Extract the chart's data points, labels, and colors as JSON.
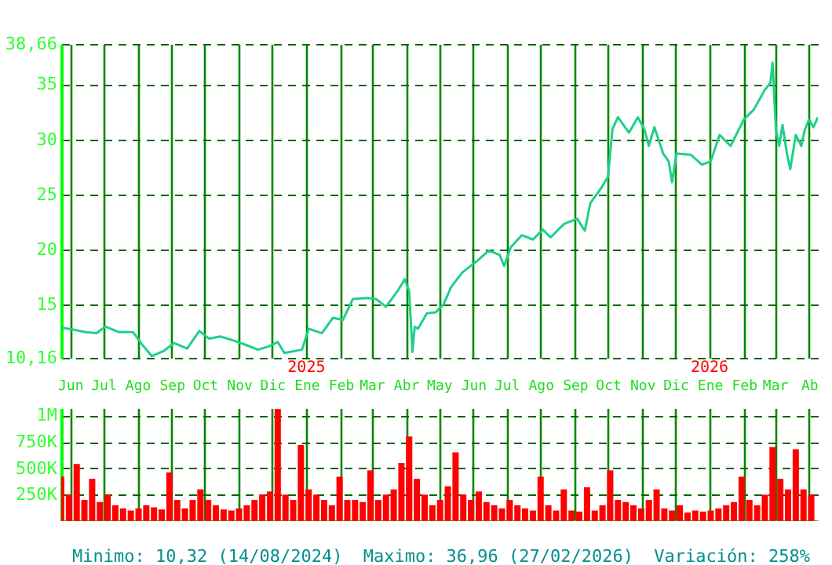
{
  "chart_data": [
    {
      "type": "line",
      "color": "#1fd08a",
      "grid": true,
      "line_style": "solid",
      "xlim": [
        "2024-05-24",
        "2026-04-09"
      ],
      "xticks": [
        {
          "value": "2024-06-01",
          "label": "Jun"
        },
        {
          "value": "2024-07-01",
          "label": "Jul"
        },
        {
          "value": "2024-08-01",
          "label": "Ago"
        },
        {
          "value": "2024-09-01",
          "label": "Sep"
        },
        {
          "value": "2024-10-01",
          "label": "Oct"
        },
        {
          "value": "2024-11-01",
          "label": "Nov"
        },
        {
          "value": "2024-12-01",
          "label": "Dic"
        },
        {
          "value": "2025-01-01",
          "label": "Ene"
        },
        {
          "value": "2025-02-01",
          "label": "Feb"
        },
        {
          "value": "2025-03-01",
          "label": "Mar"
        },
        {
          "value": "2025-04-01",
          "label": "Abr"
        },
        {
          "value": "2025-05-01",
          "label": "May"
        },
        {
          "value": "2025-06-01",
          "label": "Jun"
        },
        {
          "value": "2025-07-01",
          "label": "Jul"
        },
        {
          "value": "2025-08-01",
          "label": "Ago"
        },
        {
          "value": "2025-09-01",
          "label": "Sep"
        },
        {
          "value": "2025-10-01",
          "label": "Oct"
        },
        {
          "value": "2025-11-01",
          "label": "Nov"
        },
        {
          "value": "2025-12-01",
          "label": "Dic"
        },
        {
          "value": "2026-01-01",
          "label": "Ene"
        },
        {
          "value": "2026-02-01",
          "label": "Feb"
        },
        {
          "value": "2026-03-01",
          "label": "Mar"
        },
        {
          "value": "2026-04-01",
          "label": "Ab"
        }
      ],
      "ylim": [
        10.16,
        38.66
      ],
      "yticks": [
        {
          "value": 10.16,
          "label": "10,16"
        },
        15,
        20,
        25,
        30,
        35,
        {
          "value": 38.66,
          "label": "38,66"
        }
      ],
      "annotations": [
        "2025",
        "2026"
      ],
      "x": [
        "2024-05-24",
        "2024-06-05",
        "2024-06-15",
        "2024-06-25",
        "2024-07-03",
        "2024-07-15",
        "2024-07-28",
        "2024-08-05",
        "2024-08-14",
        "2024-08-25",
        "2024-09-03",
        "2024-09-15",
        "2024-09-26",
        "2024-10-05",
        "2024-10-15",
        "2024-10-28",
        "2024-11-08",
        "2024-11-18",
        "2024-11-28",
        "2024-12-06",
        "2024-12-12",
        "2024-12-28",
        "2025-01-03",
        "2025-01-15",
        "2025-01-25",
        "2025-02-03",
        "2025-02-12",
        "2025-02-25",
        "2025-03-05",
        "2025-03-14",
        "2025-03-25",
        "2025-03-31",
        "2025-04-04",
        "2025-04-07",
        "2025-04-09",
        "2025-04-12",
        "2025-04-20",
        "2025-04-28",
        "2025-05-05",
        "2025-05-12",
        "2025-05-22",
        "2025-06-05",
        "2025-06-15",
        "2025-06-25",
        "2025-06-29",
        "2025-07-05",
        "2025-07-15",
        "2025-07-25",
        "2025-08-03",
        "2025-08-10",
        "2025-08-22",
        "2025-09-03",
        "2025-09-10",
        "2025-09-15",
        "2025-09-25",
        "2025-10-01",
        "2025-10-05",
        "2025-10-10",
        "2025-10-20",
        "2025-10-28",
        "2025-11-03",
        "2025-11-07",
        "2025-11-12",
        "2025-11-20",
        "2025-11-25",
        "2025-11-28",
        "2025-12-02",
        "2025-12-15",
        "2025-12-25",
        "2026-01-02",
        "2026-01-10",
        "2026-01-20",
        "2026-02-01",
        "2026-02-10",
        "2026-02-20",
        "2026-02-25",
        "2026-02-27",
        "2026-03-02",
        "2026-03-05",
        "2026-03-08",
        "2026-03-12",
        "2026-03-15",
        "2026-03-20",
        "2026-03-25",
        "2026-03-28",
        "2026-04-01",
        "2026-04-05",
        "2026-04-09"
      ],
      "values": [
        12.9,
        12.7,
        12.5,
        12.4,
        13.0,
        12.5,
        12.5,
        11.4,
        10.32,
        10.8,
        11.5,
        11.0,
        12.6,
        11.9,
        12.1,
        11.7,
        11.3,
        10.9,
        11.2,
        11.6,
        10.6,
        10.9,
        12.8,
        12.4,
        13.8,
        13.6,
        15.5,
        15.6,
        15.5,
        14.8,
        16.3,
        17.3,
        16.2,
        10.7,
        13.0,
        12.8,
        14.2,
        14.3,
        15.0,
        16.6,
        17.9,
        19.0,
        19.9,
        19.5,
        18.5,
        20.2,
        21.3,
        20.9,
        21.8,
        21.1,
        22.3,
        22.8,
        21.7,
        24.2,
        25.6,
        26.6,
        30.9,
        32.0,
        30.6,
        32.0,
        30.9,
        29.4,
        31.1,
        28.7,
        28.0,
        26.1,
        28.7,
        28.6,
        27.7,
        28.0,
        30.4,
        29.4,
        31.8,
        32.7,
        34.5,
        35.1,
        36.96,
        30.9,
        29.4,
        31.3,
        28.7,
        27.3,
        30.4,
        29.4,
        30.8,
        31.8,
        31.1,
        32.0
      ]
    },
    {
      "type": "bar",
      "color": "#ff0000",
      "grid": true,
      "tick_labels": "y",
      "xlim": [
        "2024-05-24",
        "2026-04-09"
      ],
      "xticks": [
        {
          "value": "2024-06-01",
          "label": null
        },
        {
          "value": "2024-07-01",
          "label": null
        },
        {
          "value": "2024-08-01",
          "label": null
        },
        {
          "value": "2024-09-01",
          "label": null
        },
        {
          "value": "2024-10-01",
          "label": null
        },
        {
          "value": "2024-11-01",
          "label": null
        },
        {
          "value": "2024-12-01",
          "label": null
        },
        {
          "value": "2025-01-01",
          "label": null
        },
        {
          "value": "2025-02-01",
          "label": null
        },
        {
          "value": "2025-03-01",
          "label": null
        },
        {
          "value": "2025-04-01",
          "label": null
        },
        {
          "value": "2025-05-01",
          "label": null
        },
        {
          "value": "2025-06-01",
          "label": null
        },
        {
          "value": "2025-07-01",
          "label": null
        },
        {
          "value": "2025-08-01",
          "label": null
        },
        {
          "value": "2025-09-01",
          "label": null
        },
        {
          "value": "2025-10-01",
          "label": null
        },
        {
          "value": "2025-11-01",
          "label": null
        },
        {
          "value": "2025-12-01",
          "label": null
        },
        {
          "value": "2026-01-01",
          "label": null
        },
        {
          "value": "2026-02-01",
          "label": null
        },
        {
          "value": "2026-03-01",
          "label": null
        },
        {
          "value": "2026-04-01",
          "label": null
        }
      ],
      "ylim": [
        0,
        1070000
      ],
      "yticks": [
        {
          "value": 250000,
          "label": "250K"
        },
        {
          "value": 500000,
          "label": "500K"
        },
        {
          "value": 750000,
          "label": "750K"
        },
        {
          "value": 1000000,
          "label": "1M"
        }
      ],
      "annotations": [
        "Minimo: 10,32 (14/08/2024)",
        "Maximo: 36,96 (27/02/2026)",
        "Variación: 258%"
      ],
      "x": [
        "2024-05-24",
        "2024-05-31",
        "2024-06-07",
        "2024-06-14",
        "2024-06-21",
        "2024-06-28",
        "2024-07-05",
        "2024-07-12",
        "2024-07-19",
        "2024-07-26",
        "2024-08-02",
        "2024-08-09",
        "2024-08-16",
        "2024-08-23",
        "2024-08-30",
        "2024-09-06",
        "2024-09-13",
        "2024-09-20",
        "2024-09-27",
        "2024-10-04",
        "2024-10-11",
        "2024-10-18",
        "2024-10-25",
        "2024-11-01",
        "2024-11-08",
        "2024-11-15",
        "2024-11-22",
        "2024-11-29",
        "2024-12-06",
        "2024-12-13",
        "2024-12-20",
        "2024-12-27",
        "2025-01-03",
        "2025-01-10",
        "2025-01-17",
        "2025-01-24",
        "2025-01-31",
        "2025-02-07",
        "2025-02-14",
        "2025-02-21",
        "2025-02-28",
        "2025-03-07",
        "2025-03-14",
        "2025-03-21",
        "2025-03-28",
        "2025-04-04",
        "2025-04-11",
        "2025-04-18",
        "2025-04-25",
        "2025-05-02",
        "2025-05-09",
        "2025-05-16",
        "2025-05-23",
        "2025-05-30",
        "2025-06-06",
        "2025-06-13",
        "2025-06-20",
        "2025-06-27",
        "2025-07-04",
        "2025-07-11",
        "2025-07-18",
        "2025-07-25",
        "2025-08-01",
        "2025-08-08",
        "2025-08-15",
        "2025-08-22",
        "2025-08-29",
        "2025-09-05",
        "2025-09-12",
        "2025-09-19",
        "2025-09-26",
        "2025-10-03",
        "2025-10-10",
        "2025-10-17",
        "2025-10-24",
        "2025-10-31",
        "2025-11-07",
        "2025-11-14",
        "2025-11-21",
        "2025-11-28",
        "2025-12-05",
        "2025-12-12",
        "2025-12-19",
        "2025-12-26",
        "2026-01-02",
        "2026-01-09",
        "2026-01-16",
        "2026-01-23",
        "2026-01-30",
        "2026-02-06",
        "2026-02-13",
        "2026-02-20",
        "2026-02-27",
        "2026-03-06",
        "2026-03-13",
        "2026-03-20",
        "2026-03-27",
        "2026-04-03"
      ],
      "values": [
        420000,
        250000,
        540000,
        200000,
        400000,
        180000,
        250000,
        150000,
        120000,
        100000,
        120000,
        150000,
        130000,
        110000,
        460000,
        200000,
        120000,
        200000,
        300000,
        200000,
        150000,
        110000,
        100000,
        120000,
        150000,
        200000,
        250000,
        280000,
        1060000,
        250000,
        200000,
        720000,
        300000,
        250000,
        200000,
        150000,
        420000,
        200000,
        200000,
        180000,
        480000,
        200000,
        250000,
        300000,
        550000,
        800000,
        400000,
        250000,
        150000,
        200000,
        330000,
        650000,
        250000,
        200000,
        280000,
        180000,
        150000,
        120000,
        200000,
        150000,
        120000,
        100000,
        420000,
        150000,
        100000,
        300000,
        100000,
        90000,
        320000,
        100000,
        150000,
        480000,
        200000,
        180000,
        150000,
        120000,
        200000,
        300000,
        120000,
        100000,
        150000,
        80000,
        100000,
        90000,
        100000,
        120000,
        150000,
        180000,
        420000,
        200000,
        150000,
        250000,
        700000,
        400000,
        300000,
        680000,
        300000,
        250000
      ]
    }
  ]
}
